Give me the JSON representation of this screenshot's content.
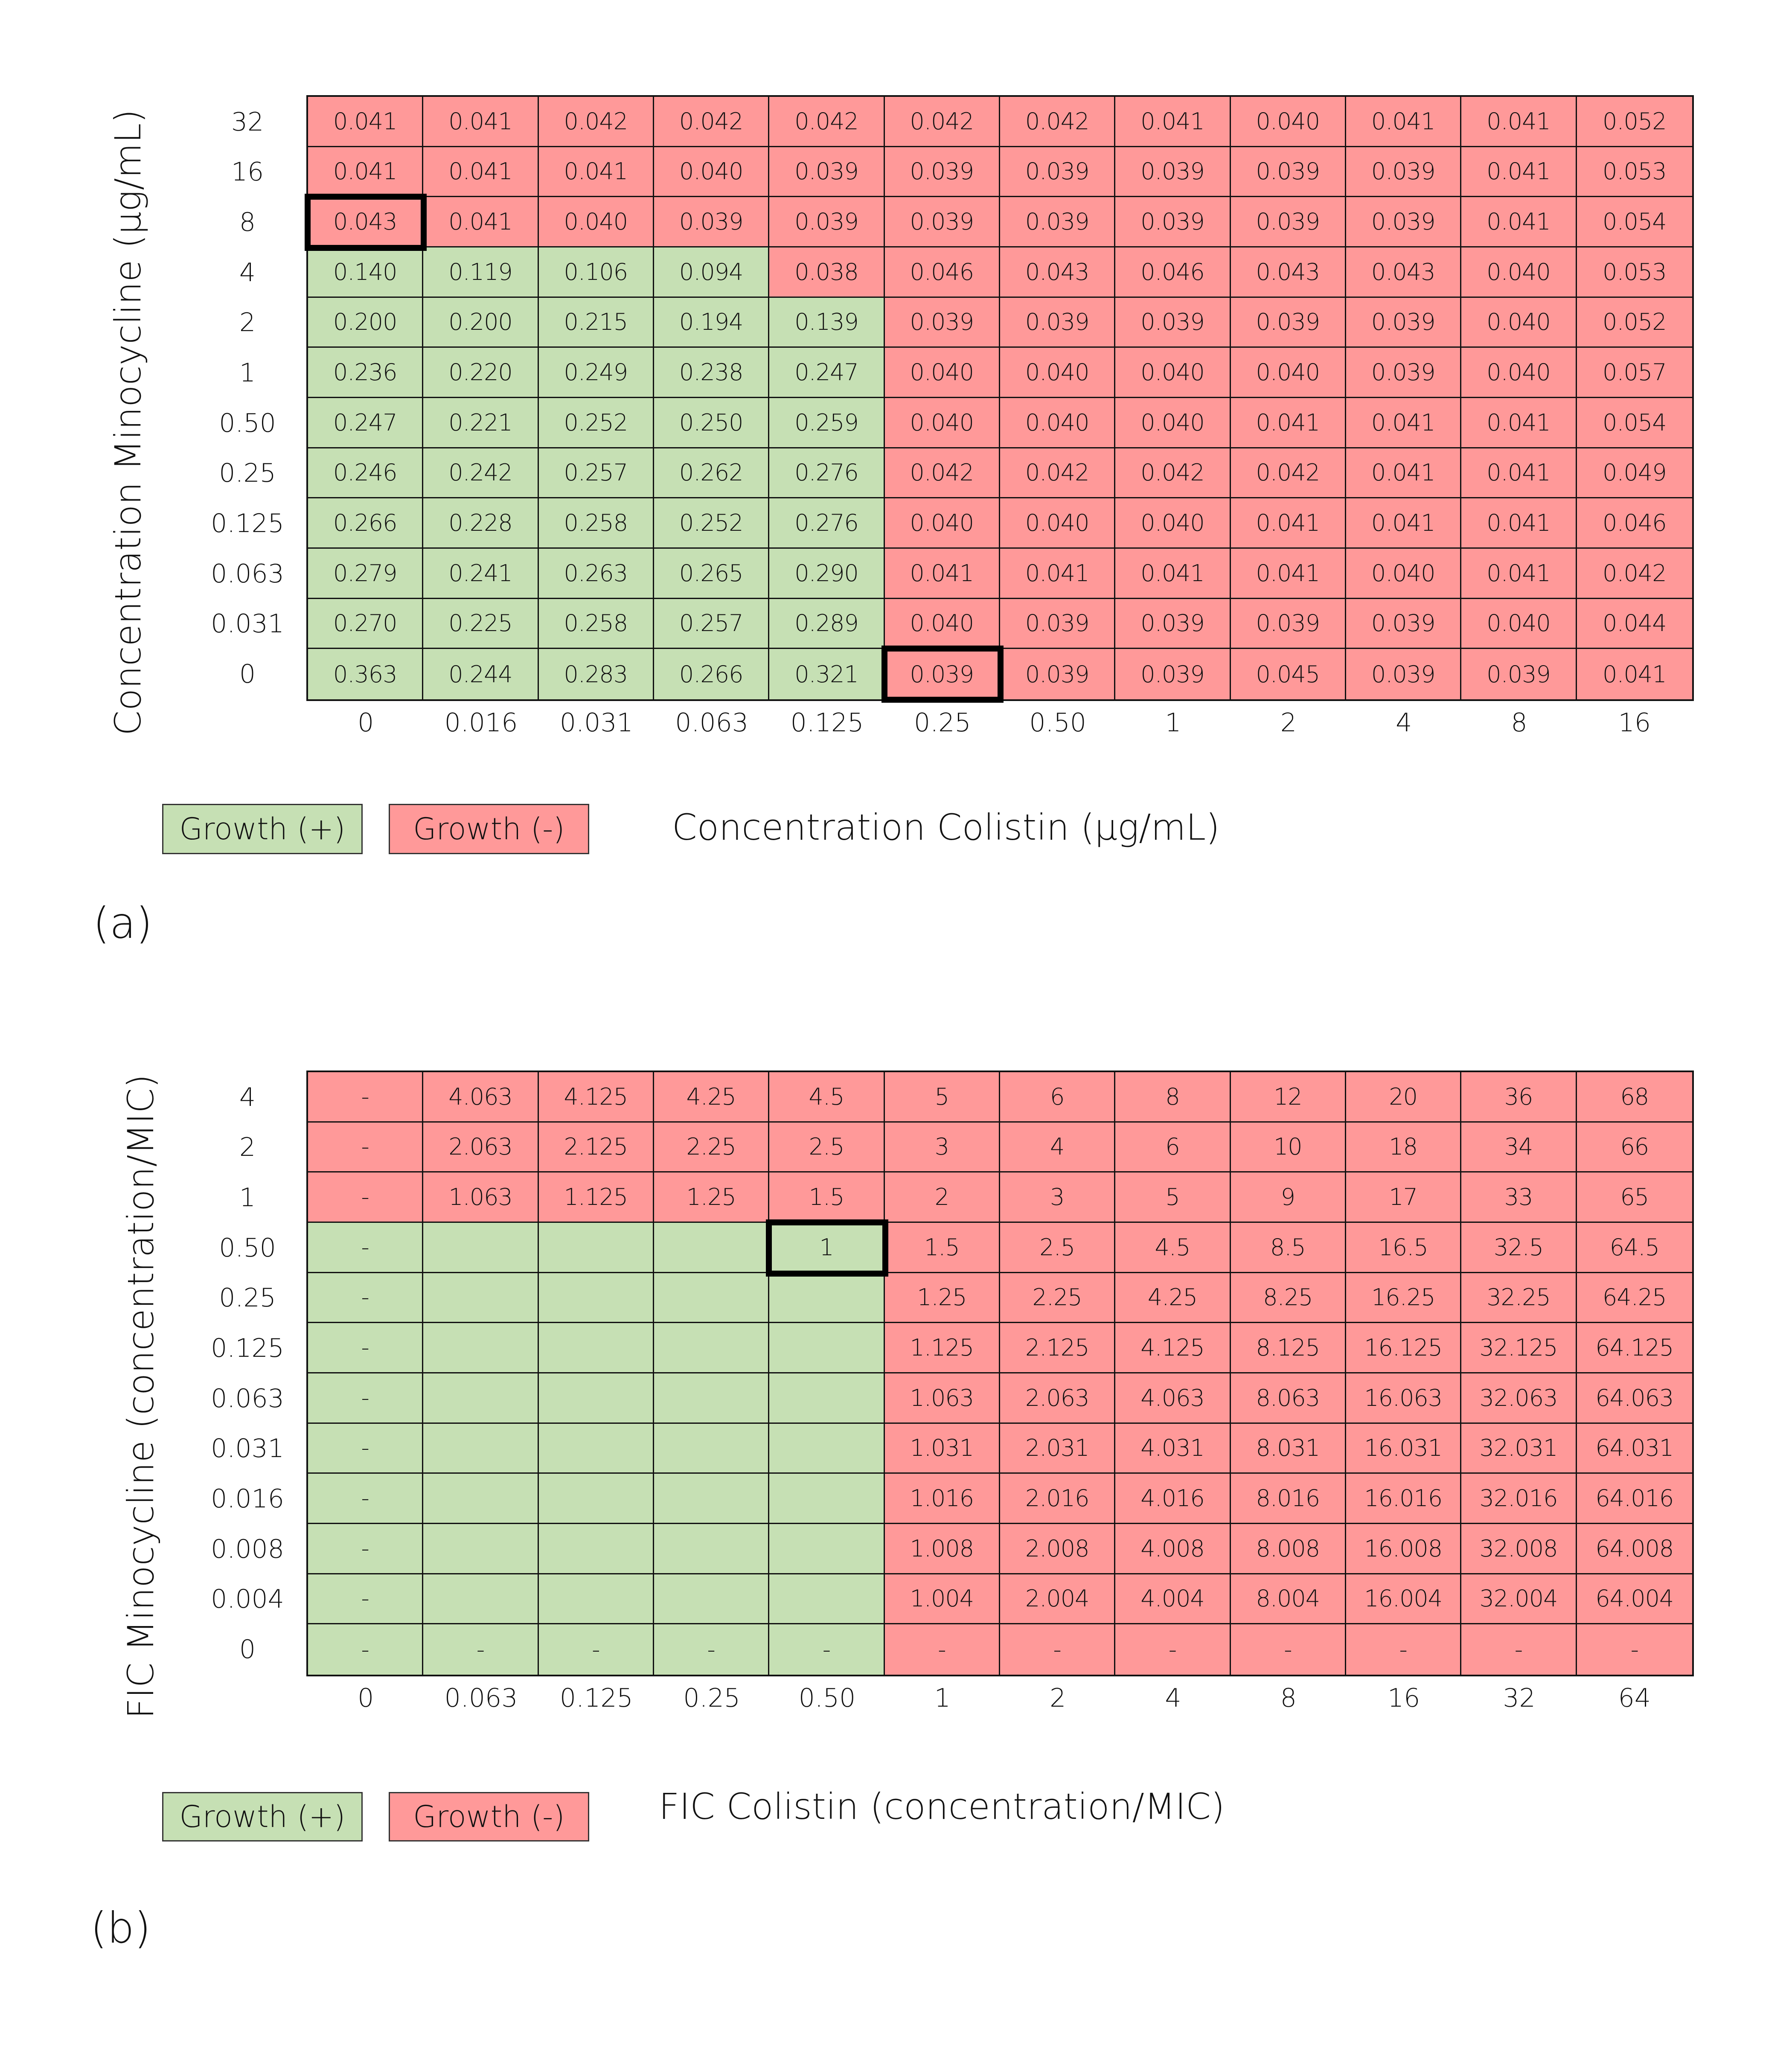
{
  "colors": {
    "growth_positive": "#C6E0B4",
    "growth_negative": "#FF9999",
    "highlight": "#000000"
  },
  "chart_data": [
    {
      "type": "table",
      "panel": "(a)",
      "ylabel": "Concentration Minocycline (µg/mL)",
      "xlabel": "Concentration Colistin (µg/mL)",
      "x_ticks": [
        "0",
        "0.016",
        "0.031",
        "0.063",
        "0.125",
        "0.25",
        "0.50",
        "1",
        "2",
        "4",
        "8",
        "16"
      ],
      "y_ticks": [
        "32",
        "16",
        "8",
        "4",
        "2",
        "1",
        "0.50",
        "0.25",
        "0.125",
        "0.063",
        "0.031",
        "0"
      ],
      "values": [
        [
          "0.041",
          "0.041",
          "0.042",
          "0.042",
          "0.042",
          "0.042",
          "0.042",
          "0.041",
          "0.040",
          "0.041",
          "0.041",
          "0.052"
        ],
        [
          "0.041",
          "0.041",
          "0.041",
          "0.040",
          "0.039",
          "0.039",
          "0.039",
          "0.039",
          "0.039",
          "0.039",
          "0.041",
          "0.053"
        ],
        [
          "0.043",
          "0.041",
          "0.040",
          "0.039",
          "0.039",
          "0.039",
          "0.039",
          "0.039",
          "0.039",
          "0.039",
          "0.041",
          "0.054"
        ],
        [
          "0.140",
          "0.119",
          "0.106",
          "0.094",
          "0.038",
          "0.046",
          "0.043",
          "0.046",
          "0.043",
          "0.043",
          "0.040",
          "0.053"
        ],
        [
          "0.200",
          "0.200",
          "0.215",
          "0.194",
          "0.139",
          "0.039",
          "0.039",
          "0.039",
          "0.039",
          "0.039",
          "0.040",
          "0.052"
        ],
        [
          "0.236",
          "0.220",
          "0.249",
          "0.238",
          "0.247",
          "0.040",
          "0.040",
          "0.040",
          "0.040",
          "0.039",
          "0.040",
          "0.057"
        ],
        [
          "0.247",
          "0.221",
          "0.252",
          "0.250",
          "0.259",
          "0.040",
          "0.040",
          "0.040",
          "0.041",
          "0.041",
          "0.041",
          "0.054"
        ],
        [
          "0.246",
          "0.242",
          "0.257",
          "0.262",
          "0.276",
          "0.042",
          "0.042",
          "0.042",
          "0.042",
          "0.041",
          "0.041",
          "0.049"
        ],
        [
          "0.266",
          "0.228",
          "0.258",
          "0.252",
          "0.276",
          "0.040",
          "0.040",
          "0.040",
          "0.041",
          "0.041",
          "0.041",
          "0.046"
        ],
        [
          "0.279",
          "0.241",
          "0.263",
          "0.265",
          "0.290",
          "0.041",
          "0.041",
          "0.041",
          "0.041",
          "0.040",
          "0.041",
          "0.042"
        ],
        [
          "0.270",
          "0.225",
          "0.258",
          "0.257",
          "0.289",
          "0.040",
          "0.039",
          "0.039",
          "0.039",
          "0.039",
          "0.040",
          "0.044"
        ],
        [
          "0.363",
          "0.244",
          "0.283",
          "0.266",
          "0.321",
          "0.039",
          "0.039",
          "0.039",
          "0.045",
          "0.039",
          "0.039",
          "0.041"
        ]
      ],
      "growth_positive_count_per_row": [
        0,
        0,
        0,
        4,
        5,
        5,
        5,
        5,
        5,
        5,
        5,
        5
      ],
      "highlighted_cells": [
        [
          "8",
          "0"
        ],
        [
          "0",
          "0.25"
        ]
      ],
      "legend": [
        "Growth (+)",
        "Growth (-)"
      ]
    },
    {
      "type": "table",
      "panel": "(b)",
      "ylabel": "FIC Minocycline (concentration/MIC)",
      "xlabel": "FIC Colistin (concentration/MIC)",
      "x_ticks": [
        "0",
        "0.063",
        "0.125",
        "0.25",
        "0.50",
        "1",
        "2",
        "4",
        "8",
        "16",
        "32",
        "64"
      ],
      "y_ticks": [
        "4",
        "2",
        "1",
        "0.50",
        "0.25",
        "0.125",
        "0.063",
        "0.031",
        "0.016",
        "0.008",
        "0.004",
        "0"
      ],
      "values": [
        [
          "-",
          "4.063",
          "4.125",
          "4.25",
          "4.5",
          "5",
          "6",
          "8",
          "12",
          "20",
          "36",
          "68"
        ],
        [
          "-",
          "2.063",
          "2.125",
          "2.25",
          "2.5",
          "3",
          "4",
          "6",
          "10",
          "18",
          "34",
          "66"
        ],
        [
          "-",
          "1.063",
          "1.125",
          "1.25",
          "1.5",
          "2",
          "3",
          "5",
          "9",
          "17",
          "33",
          "65"
        ],
        [
          "-",
          "",
          "",
          "",
          "1",
          "1.5",
          "2.5",
          "4.5",
          "8.5",
          "16.5",
          "32.5",
          "64.5"
        ],
        [
          "-",
          "",
          "",
          "",
          "",
          "1.25",
          "2.25",
          "4.25",
          "8.25",
          "16.25",
          "32.25",
          "64.25"
        ],
        [
          "-",
          "",
          "",
          "",
          "",
          "1.125",
          "2.125",
          "4.125",
          "8.125",
          "16.125",
          "32.125",
          "64.125"
        ],
        [
          "-",
          "",
          "",
          "",
          "",
          "1.063",
          "2.063",
          "4.063",
          "8.063",
          "16.063",
          "32.063",
          "64.063"
        ],
        [
          "-",
          "",
          "",
          "",
          "",
          "1.031",
          "2.031",
          "4.031",
          "8.031",
          "16.031",
          "32.031",
          "64.031"
        ],
        [
          "-",
          "",
          "",
          "",
          "",
          "1.016",
          "2.016",
          "4.016",
          "8.016",
          "16.016",
          "32.016",
          "64.016"
        ],
        [
          "-",
          "",
          "",
          "",
          "",
          "1.008",
          "2.008",
          "4.008",
          "8.008",
          "16.008",
          "32.008",
          "64.008"
        ],
        [
          "-",
          "",
          "",
          "",
          "",
          "1.004",
          "2.004",
          "4.004",
          "8.004",
          "16.004",
          "32.004",
          "64.004"
        ],
        [
          "-",
          "-",
          "-",
          "-",
          "-",
          "-",
          "-",
          "-",
          "-",
          "-",
          "-",
          "-"
        ]
      ],
      "growth_positive_count_per_row": [
        0,
        0,
        0,
        5,
        5,
        5,
        5,
        5,
        5,
        5,
        5,
        5
      ],
      "highlighted_cells": [
        [
          "0.50",
          "0.50"
        ]
      ],
      "legend": [
        "Growth (+)",
        "Growth (-)"
      ]
    }
  ]
}
